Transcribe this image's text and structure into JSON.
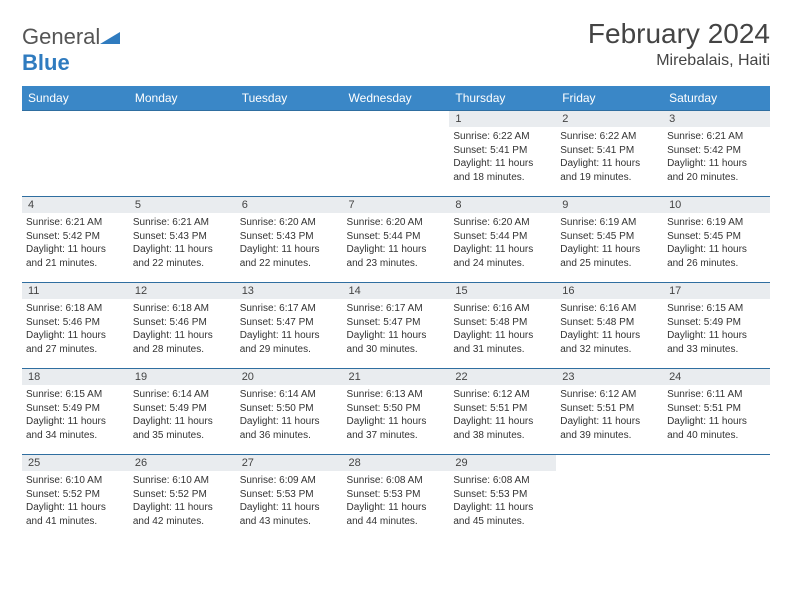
{
  "brand": {
    "name_gray": "General",
    "name_blue": "Blue"
  },
  "title": "February 2024",
  "location": "Mirebalais, Haiti",
  "colors": {
    "header_bg": "#3a87c7",
    "rule": "#2f6ea0",
    "daynum_bg": "#e9ecef",
    "text": "#333333",
    "logo_blue": "#2f7bbf"
  },
  "weekdays": [
    "Sunday",
    "Monday",
    "Tuesday",
    "Wednesday",
    "Thursday",
    "Friday",
    "Saturday"
  ],
  "weeks": [
    [
      null,
      null,
      null,
      null,
      {
        "n": "1",
        "sunrise": "6:22 AM",
        "sunset": "5:41 PM",
        "dl": "11 hours and 18 minutes."
      },
      {
        "n": "2",
        "sunrise": "6:22 AM",
        "sunset": "5:41 PM",
        "dl": "11 hours and 19 minutes."
      },
      {
        "n": "3",
        "sunrise": "6:21 AM",
        "sunset": "5:42 PM",
        "dl": "11 hours and 20 minutes."
      }
    ],
    [
      {
        "n": "4",
        "sunrise": "6:21 AM",
        "sunset": "5:42 PM",
        "dl": "11 hours and 21 minutes."
      },
      {
        "n": "5",
        "sunrise": "6:21 AM",
        "sunset": "5:43 PM",
        "dl": "11 hours and 22 minutes."
      },
      {
        "n": "6",
        "sunrise": "6:20 AM",
        "sunset": "5:43 PM",
        "dl": "11 hours and 22 minutes."
      },
      {
        "n": "7",
        "sunrise": "6:20 AM",
        "sunset": "5:44 PM",
        "dl": "11 hours and 23 minutes."
      },
      {
        "n": "8",
        "sunrise": "6:20 AM",
        "sunset": "5:44 PM",
        "dl": "11 hours and 24 minutes."
      },
      {
        "n": "9",
        "sunrise": "6:19 AM",
        "sunset": "5:45 PM",
        "dl": "11 hours and 25 minutes."
      },
      {
        "n": "10",
        "sunrise": "6:19 AM",
        "sunset": "5:45 PM",
        "dl": "11 hours and 26 minutes."
      }
    ],
    [
      {
        "n": "11",
        "sunrise": "6:18 AM",
        "sunset": "5:46 PM",
        "dl": "11 hours and 27 minutes."
      },
      {
        "n": "12",
        "sunrise": "6:18 AM",
        "sunset": "5:46 PM",
        "dl": "11 hours and 28 minutes."
      },
      {
        "n": "13",
        "sunrise": "6:17 AM",
        "sunset": "5:47 PM",
        "dl": "11 hours and 29 minutes."
      },
      {
        "n": "14",
        "sunrise": "6:17 AM",
        "sunset": "5:47 PM",
        "dl": "11 hours and 30 minutes."
      },
      {
        "n": "15",
        "sunrise": "6:16 AM",
        "sunset": "5:48 PM",
        "dl": "11 hours and 31 minutes."
      },
      {
        "n": "16",
        "sunrise": "6:16 AM",
        "sunset": "5:48 PM",
        "dl": "11 hours and 32 minutes."
      },
      {
        "n": "17",
        "sunrise": "6:15 AM",
        "sunset": "5:49 PM",
        "dl": "11 hours and 33 minutes."
      }
    ],
    [
      {
        "n": "18",
        "sunrise": "6:15 AM",
        "sunset": "5:49 PM",
        "dl": "11 hours and 34 minutes."
      },
      {
        "n": "19",
        "sunrise": "6:14 AM",
        "sunset": "5:49 PM",
        "dl": "11 hours and 35 minutes."
      },
      {
        "n": "20",
        "sunrise": "6:14 AM",
        "sunset": "5:50 PM",
        "dl": "11 hours and 36 minutes."
      },
      {
        "n": "21",
        "sunrise": "6:13 AM",
        "sunset": "5:50 PM",
        "dl": "11 hours and 37 minutes."
      },
      {
        "n": "22",
        "sunrise": "6:12 AM",
        "sunset": "5:51 PM",
        "dl": "11 hours and 38 minutes."
      },
      {
        "n": "23",
        "sunrise": "6:12 AM",
        "sunset": "5:51 PM",
        "dl": "11 hours and 39 minutes."
      },
      {
        "n": "24",
        "sunrise": "6:11 AM",
        "sunset": "5:51 PM",
        "dl": "11 hours and 40 minutes."
      }
    ],
    [
      {
        "n": "25",
        "sunrise": "6:10 AM",
        "sunset": "5:52 PM",
        "dl": "11 hours and 41 minutes."
      },
      {
        "n": "26",
        "sunrise": "6:10 AM",
        "sunset": "5:52 PM",
        "dl": "11 hours and 42 minutes."
      },
      {
        "n": "27",
        "sunrise": "6:09 AM",
        "sunset": "5:53 PM",
        "dl": "11 hours and 43 minutes."
      },
      {
        "n": "28",
        "sunrise": "6:08 AM",
        "sunset": "5:53 PM",
        "dl": "11 hours and 44 minutes."
      },
      {
        "n": "29",
        "sunrise": "6:08 AM",
        "sunset": "5:53 PM",
        "dl": "11 hours and 45 minutes."
      },
      null,
      null
    ]
  ],
  "labels": {
    "sunrise": "Sunrise:",
    "sunset": "Sunset:",
    "daylight": "Daylight:"
  }
}
